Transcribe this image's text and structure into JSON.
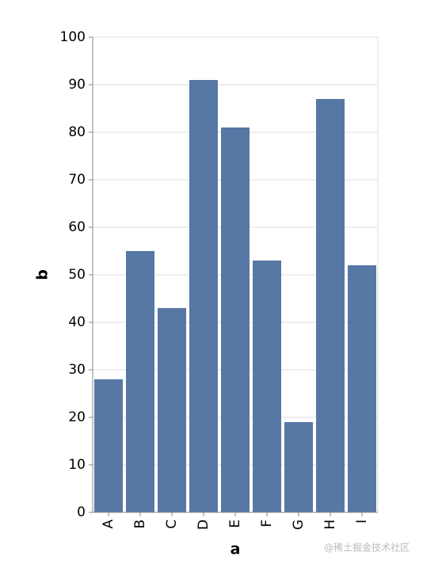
{
  "chart_data": {
    "type": "bar",
    "categories": [
      "A",
      "B",
      "C",
      "D",
      "E",
      "F",
      "G",
      "H",
      "I"
    ],
    "values": [
      28,
      55,
      43,
      91,
      81,
      53,
      19,
      87,
      52
    ],
    "color": "#5778a4",
    "x_label": "a",
    "y_label": "b",
    "ylim": [
      0,
      100
    ],
    "yticks": [
      0,
      10,
      20,
      30,
      40,
      50,
      60,
      70,
      80,
      90,
      100
    ],
    "grid": true
  },
  "watermark": "@稀土掘金技术社区"
}
